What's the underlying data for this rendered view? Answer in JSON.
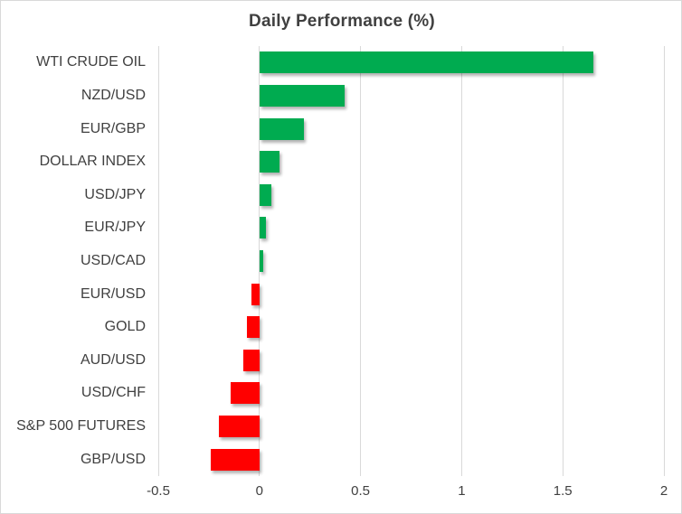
{
  "chart_data": {
    "type": "bar",
    "orientation": "horizontal",
    "title": "Daily Performance (%)",
    "categories": [
      "WTI CRUDE OIL",
      "NZD/USD",
      "EUR/GBP",
      "DOLLAR INDEX",
      "USD/JPY",
      "EUR/JPY",
      "USD/CAD",
      "EUR/USD",
      "GOLD",
      "AUD/USD",
      "USD/CHF",
      "S&P 500 FUTURES",
      "GBP/USD"
    ],
    "values": [
      1.65,
      0.42,
      0.22,
      0.1,
      0.06,
      0.03,
      0.02,
      -0.04,
      -0.06,
      -0.08,
      -0.14,
      -0.2,
      -0.24
    ],
    "xlabel": "",
    "ylabel": "",
    "xlim": [
      -0.5,
      2
    ],
    "xticks": [
      -0.5,
      0,
      0.5,
      1,
      1.5,
      2
    ],
    "xtick_labels": [
      "-0.5",
      "0",
      "0.5",
      "1",
      "1.5",
      "2"
    ],
    "grid": true,
    "legend": false,
    "colors": {
      "positive": "#00AB50",
      "negative": "#FF0000",
      "gridline": "#D9D9D9",
      "text": "#404040",
      "border": "#D9D9D9"
    }
  }
}
